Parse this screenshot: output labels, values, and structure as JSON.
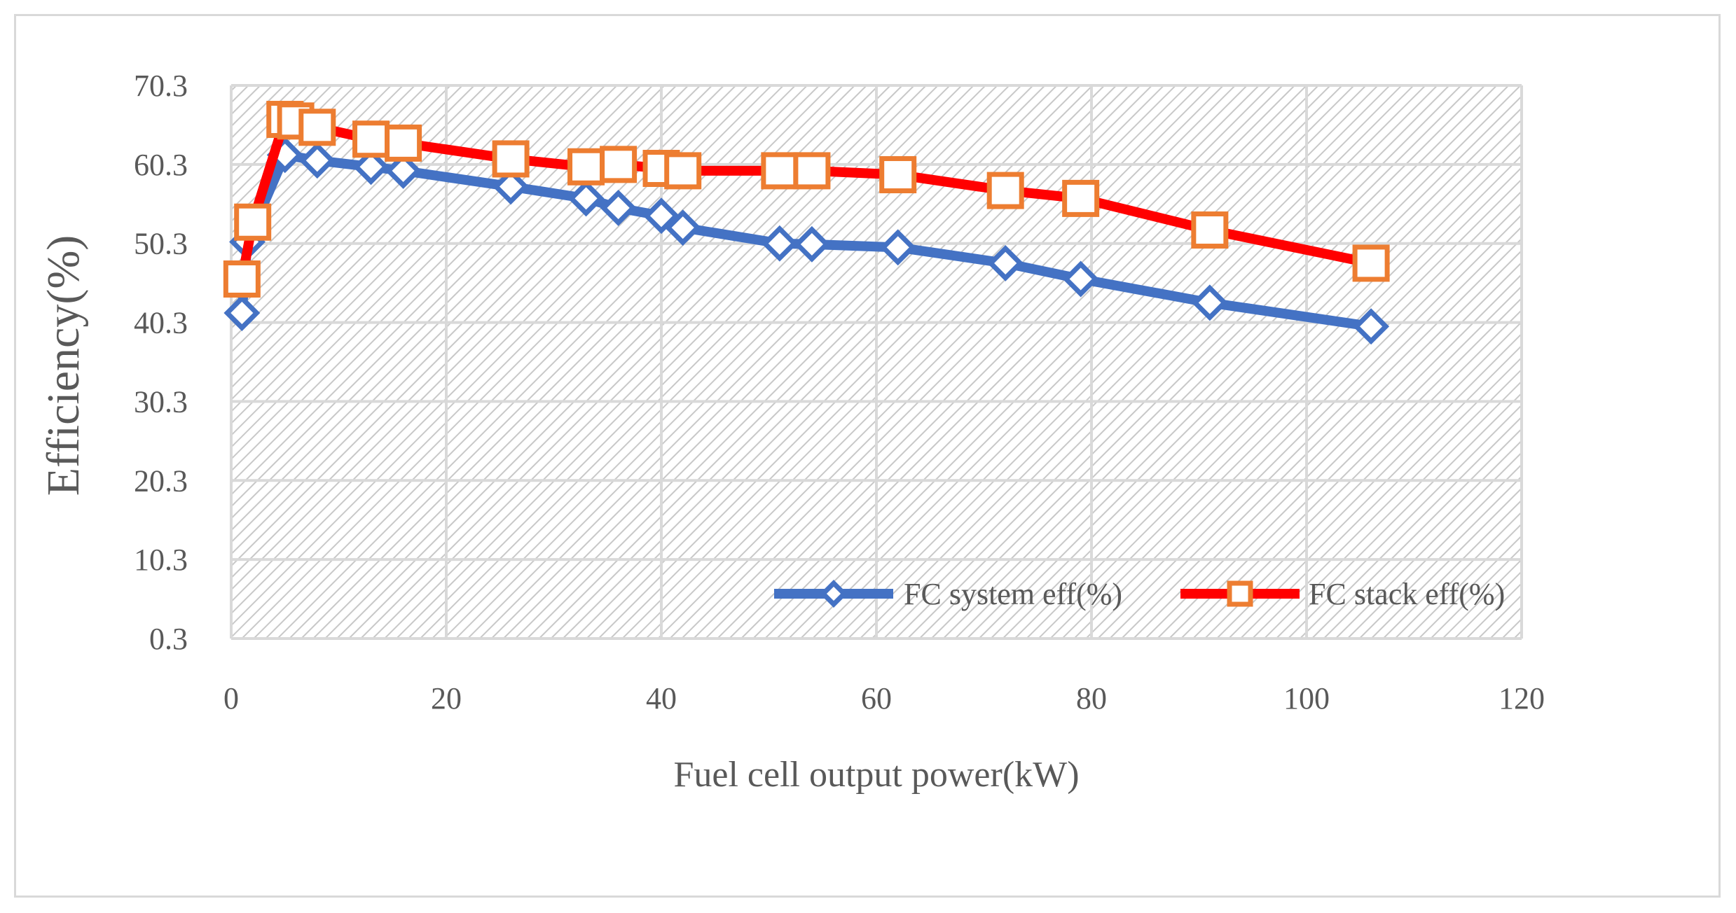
{
  "chart_data": {
    "type": "line",
    "title": "",
    "xlabel": "Fuel cell output power(kW)",
    "ylabel": "Efficiency(%)",
    "xlim": [
      0,
      120
    ],
    "ylim": [
      0.3,
      70.3
    ],
    "x_ticks": [
      "0",
      "20",
      "40",
      "60",
      "80",
      "100",
      "120"
    ],
    "y_ticks": [
      "70.3",
      "60.3",
      "50.3",
      "40.3",
      "30.3",
      "20.3",
      "10.3",
      "0.3"
    ],
    "x_tick_values": [
      0,
      20,
      40,
      60,
      80,
      100,
      120
    ],
    "y_tick_values": [
      70.3,
      60.3,
      50.3,
      40.3,
      30.3,
      20.3,
      10.3,
      0.3
    ],
    "grid": true,
    "legend_position": "bottom-right",
    "series": [
      {
        "name": "FC system eff(%)",
        "color": "#4472c4",
        "marker": "diamond",
        "x": [
          1,
          1.5,
          5,
          8,
          13,
          16,
          26,
          33,
          36,
          40,
          42,
          51,
          54,
          62,
          72,
          79,
          91,
          106
        ],
        "y": [
          41.5,
          50.5,
          61.5,
          60.8,
          60.0,
          59.5,
          57.5,
          56.0,
          54.8,
          53.8,
          52.3,
          50.3,
          50.2,
          49.8,
          47.8,
          45.8,
          42.8,
          39.8
        ]
      },
      {
        "name": "FC stack eff(%)",
        "color": "#ff0000",
        "marker_color": "#ed7d31",
        "marker": "square",
        "x": [
          1,
          2,
          5,
          6,
          8,
          13,
          16,
          26,
          33,
          36,
          40,
          42,
          51,
          54,
          62,
          72,
          79,
          91,
          106
        ],
        "y": [
          45.8,
          53.0,
          66.0,
          65.8,
          65.0,
          63.5,
          63.0,
          61.0,
          60.0,
          60.3,
          59.8,
          59.5,
          59.5,
          59.5,
          59.0,
          57.0,
          56.0,
          52.0,
          47.8
        ]
      }
    ]
  }
}
